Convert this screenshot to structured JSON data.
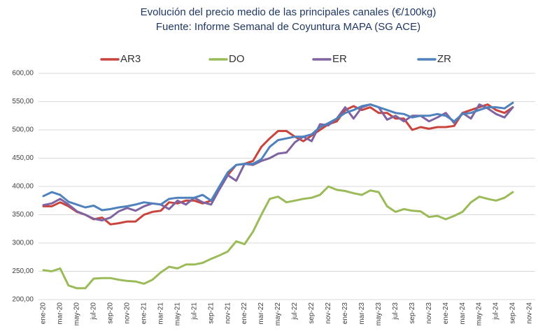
{
  "chart_data": {
    "type": "line",
    "title": "Evolución del precio medio de las principales canales  (€/100kg)",
    "subtitle": "Fuente: Informe Semanal de Coyuntura MAPA (SG ACE)",
    "categories": [
      "ene-20",
      null,
      "mar-20",
      null,
      "may-20",
      null,
      "jul-20",
      null,
      "sep-20",
      null,
      "nov-20",
      null,
      "ene-21",
      null,
      "mar-21",
      null,
      "may-21",
      null,
      "jul-21",
      null,
      "sep-21",
      null,
      "nov-21",
      null,
      "ene-22",
      null,
      "mar-22",
      null,
      "may-22",
      null,
      "jul-22",
      null,
      "sep-22",
      null,
      "nov-22",
      null,
      "ene-23",
      null,
      "mar-23",
      null,
      "may-23",
      null,
      "jul-23",
      null,
      "sep-23",
      null,
      "nov-23",
      null,
      "ene-24",
      null,
      "mar-24",
      null,
      "may-24",
      null,
      "jul-24",
      null,
      "sep-24",
      null,
      "nov-24"
    ],
    "series": [
      {
        "name": "AR3",
        "color": "#c8443c",
        "values": [
          365,
          365,
          372,
          365,
          355,
          350,
          342,
          345,
          333,
          335,
          338,
          338,
          350,
          355,
          357,
          372,
          370,
          375,
          375,
          370,
          375,
          395,
          420,
          438,
          440,
          445,
          470,
          485,
          498,
          498,
          488,
          480,
          490,
          500,
          510,
          515,
          535,
          542,
          535,
          540,
          530,
          530,
          520,
          520,
          500,
          505,
          502,
          505,
          505,
          507,
          530,
          535,
          540,
          545,
          535,
          530,
          540,
          null,
          null
        ]
      },
      {
        "name": "DO",
        "color": "#9bbb59",
        "values": [
          252,
          250,
          255,
          225,
          220,
          220,
          237,
          238,
          238,
          235,
          233,
          232,
          228,
          235,
          248,
          258,
          255,
          262,
          262,
          265,
          272,
          278,
          285,
          303,
          298,
          320,
          350,
          378,
          382,
          372,
          375,
          378,
          380,
          385,
          400,
          394,
          392,
          388,
          385,
          393,
          390,
          365,
          355,
          360,
          357,
          356,
          346,
          348,
          342,
          348,
          355,
          372,
          382,
          378,
          375,
          380,
          390,
          null,
          null
        ]
      },
      {
        "name": "ER",
        "color": "#8064a2",
        "values": [
          367,
          370,
          378,
          368,
          356,
          350,
          343,
          340,
          345,
          356,
          362,
          357,
          365,
          370,
          368,
          360,
          375,
          368,
          380,
          372,
          368,
          395,
          420,
          410,
          440,
          438,
          445,
          450,
          458,
          460,
          478,
          488,
          480,
          510,
          508,
          520,
          540,
          520,
          540,
          545,
          540,
          518,
          525,
          515,
          525,
          525,
          515,
          522,
          530,
          512,
          530,
          520,
          545,
          538,
          528,
          522,
          540,
          null,
          null
        ]
      },
      {
        "name": "ZR",
        "color": "#4f81bd",
        "values": [
          383,
          390,
          385,
          373,
          368,
          363,
          366,
          358,
          360,
          363,
          365,
          368,
          372,
          370,
          368,
          378,
          380,
          380,
          380,
          385,
          375,
          400,
          425,
          438,
          440,
          440,
          448,
          470,
          482,
          485,
          488,
          488,
          492,
          505,
          512,
          520,
          530,
          535,
          542,
          545,
          540,
          535,
          530,
          528,
          522,
          525,
          525,
          528,
          525,
          515,
          528,
          530,
          535,
          540,
          540,
          538,
          548,
          null,
          null
        ]
      }
    ],
    "ylim": [
      200,
      600
    ],
    "yticks": [
      {
        "value": 200,
        "label": "200,00"
      },
      {
        "value": 250,
        "label": "250,00"
      },
      {
        "value": 300,
        "label": "300,00"
      },
      {
        "value": 350,
        "label": "350,00"
      },
      {
        "value": 400,
        "label": "400,00"
      },
      {
        "value": 450,
        "label": "450,00"
      },
      {
        "value": 500,
        "label": "500,00"
      },
      {
        "value": 550,
        "label": "550,00"
      },
      {
        "value": 600,
        "label": "600,00"
      }
    ],
    "grid": true,
    "legend": "top"
  }
}
